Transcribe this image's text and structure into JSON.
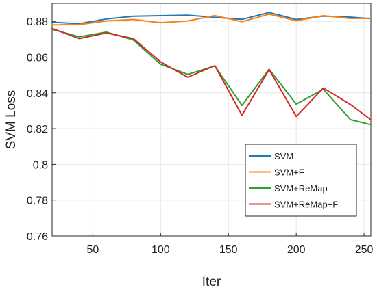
{
  "chart_data": {
    "type": "line",
    "xlabel": "Iter",
    "ylabel": "SVM Loss",
    "xlim": [
      20,
      255
    ],
    "ylim": [
      0.76,
      0.89
    ],
    "xticks": [
      50,
      100,
      150,
      200,
      250
    ],
    "xtick_labels": [
      "50",
      "100",
      "150",
      "200",
      "250"
    ],
    "yticks": [
      0.76,
      0.78,
      0.8,
      0.82,
      0.84,
      0.86,
      0.88
    ],
    "ytick_labels": [
      "0.76",
      "0.78",
      "0.8",
      "0.82",
      "0.84",
      "0.86",
      "0.88"
    ],
    "grid": true,
    "legend_position": "bottom-right",
    "x": [
      20,
      40,
      60,
      80,
      100,
      120,
      140,
      160,
      180,
      200,
      220,
      240,
      255
    ],
    "series": [
      {
        "name": "SVM",
        "color": "#1f77b4",
        "values": [
          0.8795,
          0.8787,
          0.8813,
          0.8828,
          0.8831,
          0.8834,
          0.8822,
          0.8811,
          0.8849,
          0.881,
          0.8829,
          0.8823,
          0.8815
        ]
      },
      {
        "name": "SVM+F",
        "color": "#ff7f0e",
        "values": [
          0.878,
          0.8782,
          0.8802,
          0.881,
          0.8792,
          0.8802,
          0.8832,
          0.8798,
          0.884,
          0.8803,
          0.8831,
          0.8816,
          0.8817
        ]
      },
      {
        "name": "SVM+ReMap",
        "color": "#2ca02c",
        "values": [
          0.8755,
          0.8713,
          0.874,
          0.8695,
          0.856,
          0.8503,
          0.855,
          0.833,
          0.8532,
          0.8337,
          0.842,
          0.825,
          0.8222
        ]
      },
      {
        "name": "SVM+ReMap+F",
        "color": "#d62728",
        "values": [
          0.876,
          0.8703,
          0.8735,
          0.8703,
          0.8573,
          0.8487,
          0.8552,
          0.8275,
          0.853,
          0.8268,
          0.8427,
          0.8335,
          0.825
        ]
      }
    ]
  }
}
